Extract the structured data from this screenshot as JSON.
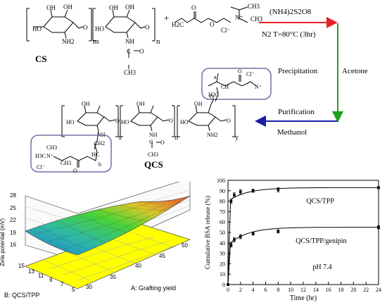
{
  "scheme": {
    "cs_label": "CS",
    "qcs_label": "QCS",
    "reagent": "(NH4)2S2O8",
    "condition": "N2  T=80°C (3hr)",
    "step_precipitation": "Precipitation",
    "step_acetone": "Acetone",
    "step_purification": "Purification",
    "step_methanol": "Methanol",
    "subscripts": {
      "m": "m",
      "n": "n",
      "x": "x",
      "y": "y",
      "a": "a",
      "b": "b"
    },
    "chloride": "Cl⁻",
    "atoms": {
      "oh": "OH",
      "ho": "HO",
      "nh2": "NH2",
      "nh": "NH",
      "o": "O",
      "c": "C",
      "ch3": "CH3",
      "h2c": "H2C",
      "h3c": "H3C",
      "hc": "HC",
      "ch": "CH",
      "ch2": "CH2",
      "n_plus": "N⁺"
    },
    "arrow_colors": {
      "red": "#e8222a",
      "green": "#1ea01e",
      "blue": "#1c1ca8"
    },
    "box_color": "#7d6aa8"
  },
  "surface_plot": {
    "zlabel": "Zeta potential (mV)",
    "xlabel": "A: Grafting yield",
    "ylabel": "B: QCS/TPP",
    "z_ticks": [
      "28",
      "25",
      "22",
      "19",
      "16"
    ],
    "a_ticks": [
      "30",
      "35",
      "40",
      "45",
      "50"
    ],
    "b_ticks": [
      "5",
      "7",
      "9",
      "11",
      "13",
      "15"
    ],
    "colors": {
      "low": "#1a7fd0",
      "mid": "#3fd23f",
      "high": "#e8443a",
      "contour": "#ffff00"
    }
  },
  "chart_data": {
    "type": "line",
    "xlabel": "Time (hr)",
    "ylabel": "Cumulative BSA release (%)",
    "xlim": [
      0,
      24
    ],
    "ylim": [
      0,
      100
    ],
    "x_ticks": [
      0,
      2,
      4,
      6,
      8,
      10,
      12,
      14,
      16,
      18,
      20,
      22,
      24
    ],
    "y_ticks": [
      0,
      10,
      20,
      30,
      40,
      50,
      60,
      70,
      80,
      90,
      100
    ],
    "annotation": "pH 7.4",
    "series": [
      {
        "name": "QCS/TPP",
        "marker": "square",
        "x": [
          0,
          0.5,
          1,
          2,
          4,
          8,
          24
        ],
        "y": [
          0,
          80,
          86,
          89,
          90,
          91,
          93
        ],
        "err": [
          0,
          2,
          2,
          2,
          1.5,
          2,
          1
        ]
      },
      {
        "name": "QCS/TPP/genipin",
        "marker": "square",
        "x": [
          0,
          0.5,
          1,
          2,
          4,
          8,
          24
        ],
        "y": [
          0,
          38,
          43,
          46,
          49,
          51,
          55
        ],
        "err": [
          0,
          2,
          2,
          2,
          1.5,
          1.5,
          1.5
        ]
      }
    ]
  }
}
